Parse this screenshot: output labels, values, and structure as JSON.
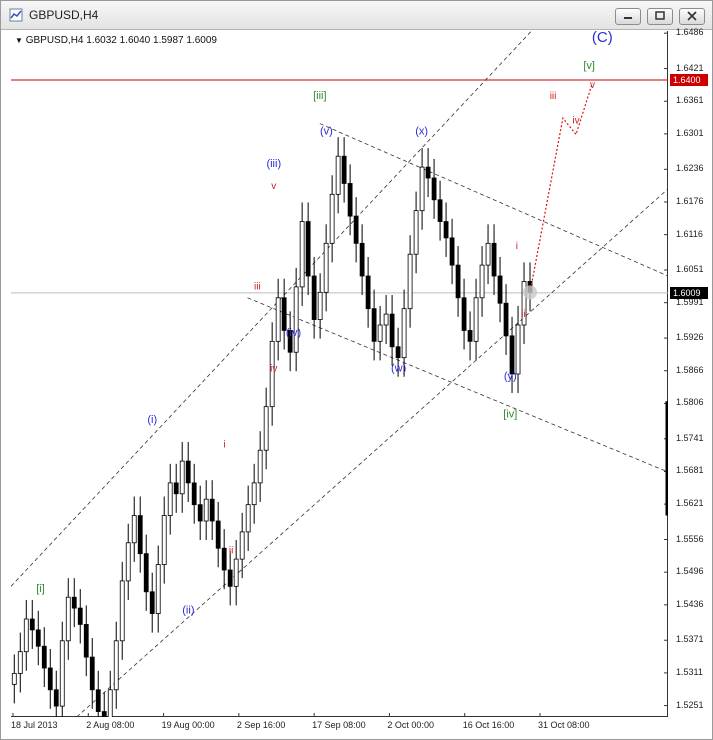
{
  "window": {
    "title": "GBPUSD,H4"
  },
  "chart_info": "GBPUSD,H4  1.6032 1.6040 1.5987 1.6009",
  "chart_data": {
    "type": "candlestick",
    "symbol": "GBPUSD",
    "timeframe": "H4",
    "ohlc": {
      "open": 1.6032,
      "high": 1.604,
      "low": 1.5987,
      "close": 1.6009
    },
    "ylim": [
      1.523,
      1.649
    ],
    "y_ticks": [
      "1.6486",
      "1.6421",
      "1.6361",
      "1.6301",
      "1.6236",
      "1.6176",
      "1.6116",
      "1.6051",
      "1.5991",
      "1.5926",
      "1.5866",
      "1.5806",
      "1.5741",
      "1.5681",
      "1.5621",
      "1.5556",
      "1.5496",
      "1.5436",
      "1.5371",
      "1.5311",
      "1.5251"
    ],
    "x_ticks": [
      "18 Jul 2013",
      "2 Aug 08:00",
      "19 Aug 00:00",
      "2 Sep 16:00",
      "17 Sep 08:00",
      "2 Oct 00:00",
      "16 Oct 16:00",
      "31 Oct 08:00"
    ],
    "horizontal_line": {
      "value": 1.64,
      "label": "1.6400",
      "color": "#cc0000"
    },
    "current_price": {
      "value": 1.6009,
      "label": "1.6009"
    },
    "series_close": [
      1.531,
      1.535,
      1.541,
      1.539,
      1.536,
      1.532,
      1.528,
      1.525,
      1.537,
      1.545,
      1.543,
      1.54,
      1.534,
      1.528,
      1.524,
      1.52,
      1.528,
      1.537,
      1.548,
      1.555,
      1.56,
      1.553,
      1.546,
      1.542,
      1.551,
      1.56,
      1.566,
      1.564,
      1.57,
      1.566,
      1.562,
      1.559,
      1.563,
      1.559,
      1.554,
      1.55,
      1.547,
      1.552,
      1.557,
      1.562,
      1.566,
      1.572,
      1.58,
      1.592,
      1.6,
      1.594,
      1.59,
      1.602,
      1.614,
      1.604,
      1.596,
      1.601,
      1.61,
      1.619,
      1.626,
      1.621,
      1.615,
      1.61,
      1.604,
      1.598,
      1.592,
      1.595,
      1.597,
      1.591,
      1.589,
      1.598,
      1.608,
      1.616,
      1.624,
      1.622,
      1.618,
      1.614,
      1.611,
      1.606,
      1.6,
      1.594,
      1.592,
      1.6,
      1.606,
      1.61,
      1.604,
      1.599,
      1.593,
      1.586,
      1.595,
      1.603,
      1.601
    ],
    "annotations": [
      {
        "label": "(C)",
        "x": 0.9,
        "y": 1.647,
        "color": "#2b2bd6",
        "size": 15
      },
      {
        "label": "[v]",
        "x": 0.88,
        "y": 1.642,
        "color": "#2e8b2e",
        "size": 11
      },
      {
        "label": "v",
        "x": 0.885,
        "y": 1.6385,
        "color": "#cc2222",
        "size": 10
      },
      {
        "label": "iii",
        "x": 0.825,
        "y": 1.6365,
        "color": "#cc2222",
        "size": 10
      },
      {
        "label": "iv",
        "x": 0.86,
        "y": 1.632,
        "color": "#cc2222",
        "size": 10
      },
      {
        "label": "[iii]",
        "x": 0.47,
        "y": 1.6365,
        "color": "#2e8b2e",
        "size": 11
      },
      {
        "label": "(v)",
        "x": 0.48,
        "y": 1.63,
        "color": "#2b2bd6",
        "size": 11
      },
      {
        "label": "(x)",
        "x": 0.625,
        "y": 1.63,
        "color": "#2b2bd6",
        "size": 11
      },
      {
        "label": "(iii)",
        "x": 0.4,
        "y": 1.624,
        "color": "#2b2bd6",
        "size": 11
      },
      {
        "label": "v",
        "x": 0.4,
        "y": 1.62,
        "color": "#cc2222",
        "size": 10
      },
      {
        "label": "i",
        "x": 0.77,
        "y": 1.609,
        "color": "#cc2222",
        "size": 10
      },
      {
        "label": "iii",
        "x": 0.375,
        "y": 1.6015,
        "color": "#cc2222",
        "size": 10
      },
      {
        "label": "ii",
        "x": 0.78,
        "y": 1.5965,
        "color": "#cc2222",
        "size": 10
      },
      {
        "label": "(iv)",
        "x": 0.43,
        "y": 1.593,
        "color": "#2b2bd6",
        "size": 11
      },
      {
        "label": "(w)",
        "x": 0.59,
        "y": 1.5865,
        "color": "#2b2bd6",
        "size": 11
      },
      {
        "label": "iv",
        "x": 0.4,
        "y": 1.5865,
        "color": "#cc2222",
        "size": 10
      },
      {
        "label": "(y)",
        "x": 0.76,
        "y": 1.585,
        "color": "#2b2bd6",
        "size": 11
      },
      {
        "label": "[iv]",
        "x": 0.76,
        "y": 1.578,
        "color": "#2e8b2e",
        "size": 11
      },
      {
        "label": "(i)",
        "x": 0.215,
        "y": 1.577,
        "color": "#2b2bd6",
        "size": 11
      },
      {
        "label": "i",
        "x": 0.325,
        "y": 1.5725,
        "color": "#cc2222",
        "size": 10
      },
      {
        "label": "ii",
        "x": 0.335,
        "y": 1.553,
        "color": "#cc2222",
        "size": 10
      },
      {
        "label": "[i]",
        "x": 0.045,
        "y": 1.546,
        "color": "#2e8b2e",
        "size": 11
      },
      {
        "label": "(ii)",
        "x": 0.27,
        "y": 1.542,
        "color": "#2b2bd6",
        "size": 11
      }
    ],
    "colors": {
      "candles": "#000000",
      "grid": "none",
      "trendlines": "#333333",
      "projection": "#dd1111",
      "wave_green": "#2e8b2e",
      "wave_blue": "#2b2bd6",
      "wave_red": "#cc2222"
    }
  }
}
